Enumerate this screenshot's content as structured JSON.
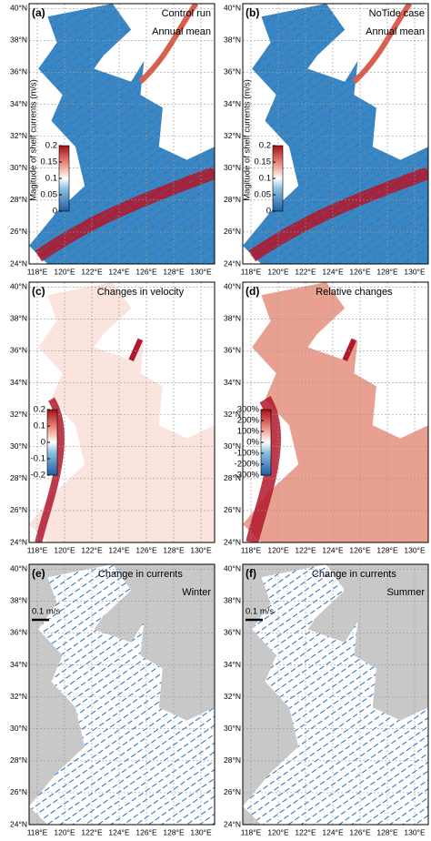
{
  "map": {
    "xlim": [
      117.4,
      131
    ],
    "ylim": [
      24,
      40.3
    ],
    "xticks": [
      {
        "value": 118,
        "label": "118°E"
      },
      {
        "value": 120,
        "label": "120°E"
      },
      {
        "value": 122,
        "label": "122°E"
      },
      {
        "value": 124,
        "label": "124°E"
      },
      {
        "value": 126,
        "label": "126°E"
      },
      {
        "value": 128,
        "label": "128°E"
      },
      {
        "value": 130,
        "label": "130°E"
      }
    ],
    "yticks": [
      {
        "value": 24,
        "label": "24°N"
      },
      {
        "value": 26,
        "label": "26°N"
      },
      {
        "value": 28,
        "label": "28°N"
      },
      {
        "value": 30,
        "label": "30°N"
      },
      {
        "value": 32,
        "label": "32°N"
      },
      {
        "value": 34,
        "label": "34°N"
      },
      {
        "value": 36,
        "label": "36°N"
      },
      {
        "value": 38,
        "label": "38°N"
      },
      {
        "value": 40,
        "label": "40°N"
      }
    ],
    "grid": true
  },
  "panels": [
    {
      "label": "(a)",
      "texts": [
        "Control run",
        "Annual mean"
      ],
      "colorbar": {
        "label": "Magitude of shelf currents (m/s)",
        "lim": [
          0,
          0.2
        ],
        "ticks": [
          0,
          0.05,
          0.1,
          0.15,
          0.2
        ]
      }
    },
    {
      "label": "(b)",
      "texts": [
        "NoTide case",
        "Annual mean"
      ],
      "colorbar": {
        "label": "Magitude of shelf currents (m/s)",
        "lim": [
          0,
          0.2
        ],
        "ticks": [
          0,
          0.05,
          0.1,
          0.15,
          0.2
        ]
      }
    },
    {
      "label": "(c)",
      "texts": [
        "Changes in velocity"
      ],
      "colorbar": {
        "lim": [
          -0.2,
          0.2
        ],
        "ticks": [
          -0.2,
          -0.1,
          0,
          0.1,
          0.2
        ]
      }
    },
    {
      "label": "(d)",
      "texts": [
        "Relative changes"
      ],
      "colorbar": {
        "lim": [
          -300,
          300
        ],
        "ticks": [
          {
            "value": -300,
            "label": "-300%"
          },
          {
            "value": -200,
            "label": "-200%"
          },
          {
            "value": -100,
            "label": "-100%"
          },
          {
            "value": 0,
            "label": "0%"
          },
          {
            "value": 100,
            "label": "100%"
          },
          {
            "value": 200,
            "label": "200%"
          },
          {
            "value": 300,
            "label": "300%"
          }
        ]
      }
    },
    {
      "label": "(e)",
      "texts": [
        "Change in currents",
        "Winter"
      ],
      "scale_label": "0.1 m/s"
    },
    {
      "label": "(f)",
      "texts": [
        "Change in currents",
        "Summer"
      ],
      "scale_label": "0.1 m/s"
    }
  ]
}
